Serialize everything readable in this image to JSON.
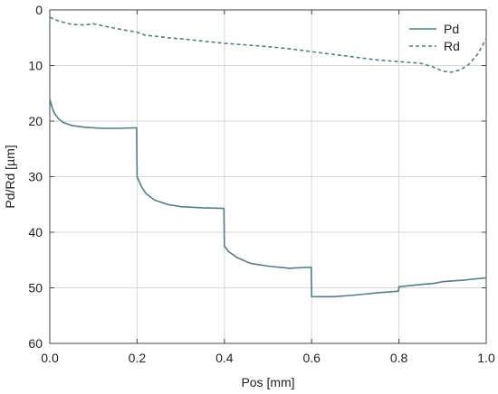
{
  "chart_data": {
    "type": "line",
    "xlabel": "Pos [mm]",
    "ylabel": "Pd/Rd [µm]",
    "xlim": [
      0.0,
      1.0
    ],
    "ylim": [
      0,
      60
    ],
    "y_inverted": true,
    "grid": true,
    "legend_placement": "top-right",
    "x_ticks": [
      "0.0",
      "0.2",
      "0.4",
      "0.6",
      "0.8",
      "1.0"
    ],
    "y_ticks": [
      "0",
      "10",
      "20",
      "30",
      "40",
      "50",
      "60"
    ],
    "colors": {
      "series": "#4e7f8a",
      "grid": "#d6d6d6",
      "axis": "#444444"
    },
    "series": [
      {
        "name": "Pd",
        "style": "solid",
        "points": [
          [
            0.0,
            16.0
          ],
          [
            0.005,
            17.5
          ],
          [
            0.01,
            18.5
          ],
          [
            0.02,
            19.6
          ],
          [
            0.03,
            20.2
          ],
          [
            0.05,
            20.8
          ],
          [
            0.08,
            21.1
          ],
          [
            0.12,
            21.3
          ],
          [
            0.16,
            21.3
          ],
          [
            0.199,
            21.2
          ],
          [
            0.2,
            30.0
          ],
          [
            0.21,
            31.8
          ],
          [
            0.22,
            33.0
          ],
          [
            0.24,
            34.2
          ],
          [
            0.27,
            35.0
          ],
          [
            0.3,
            35.4
          ],
          [
            0.35,
            35.6
          ],
          [
            0.399,
            35.7
          ],
          [
            0.4,
            42.5
          ],
          [
            0.41,
            43.5
          ],
          [
            0.43,
            44.6
          ],
          [
            0.46,
            45.6
          ],
          [
            0.5,
            46.1
          ],
          [
            0.55,
            46.5
          ],
          [
            0.57,
            46.4
          ],
          [
            0.599,
            46.3
          ],
          [
            0.6,
            51.6
          ],
          [
            0.62,
            51.6
          ],
          [
            0.65,
            51.6
          ],
          [
            0.7,
            51.3
          ],
          [
            0.75,
            50.9
          ],
          [
            0.799,
            50.6
          ],
          [
            0.8,
            49.8
          ],
          [
            0.85,
            49.4
          ],
          [
            0.88,
            49.2
          ],
          [
            0.9,
            48.9
          ],
          [
            0.95,
            48.6
          ],
          [
            1.0,
            48.2
          ]
        ]
      },
      {
        "name": "Rd",
        "style": "dashed",
        "points": [
          [
            0.0,
            1.3
          ],
          [
            0.02,
            2.0
          ],
          [
            0.05,
            2.6
          ],
          [
            0.08,
            2.7
          ],
          [
            0.1,
            2.5
          ],
          [
            0.13,
            3.0
          ],
          [
            0.17,
            3.6
          ],
          [
            0.2,
            4.0
          ],
          [
            0.22,
            4.6
          ],
          [
            0.24,
            4.7
          ],
          [
            0.27,
            5.0
          ],
          [
            0.3,
            5.2
          ],
          [
            0.35,
            5.6
          ],
          [
            0.4,
            6.0
          ],
          [
            0.45,
            6.3
          ],
          [
            0.5,
            6.6
          ],
          [
            0.55,
            7.0
          ],
          [
            0.6,
            7.5
          ],
          [
            0.65,
            8.0
          ],
          [
            0.7,
            8.5
          ],
          [
            0.75,
            9.0
          ],
          [
            0.8,
            9.3
          ],
          [
            0.85,
            9.6
          ],
          [
            0.88,
            10.3
          ],
          [
            0.9,
            11.0
          ],
          [
            0.92,
            11.2
          ],
          [
            0.94,
            10.8
          ],
          [
            0.96,
            9.8
          ],
          [
            0.98,
            8.0
          ],
          [
            1.0,
            5.2
          ]
        ]
      }
    ]
  }
}
